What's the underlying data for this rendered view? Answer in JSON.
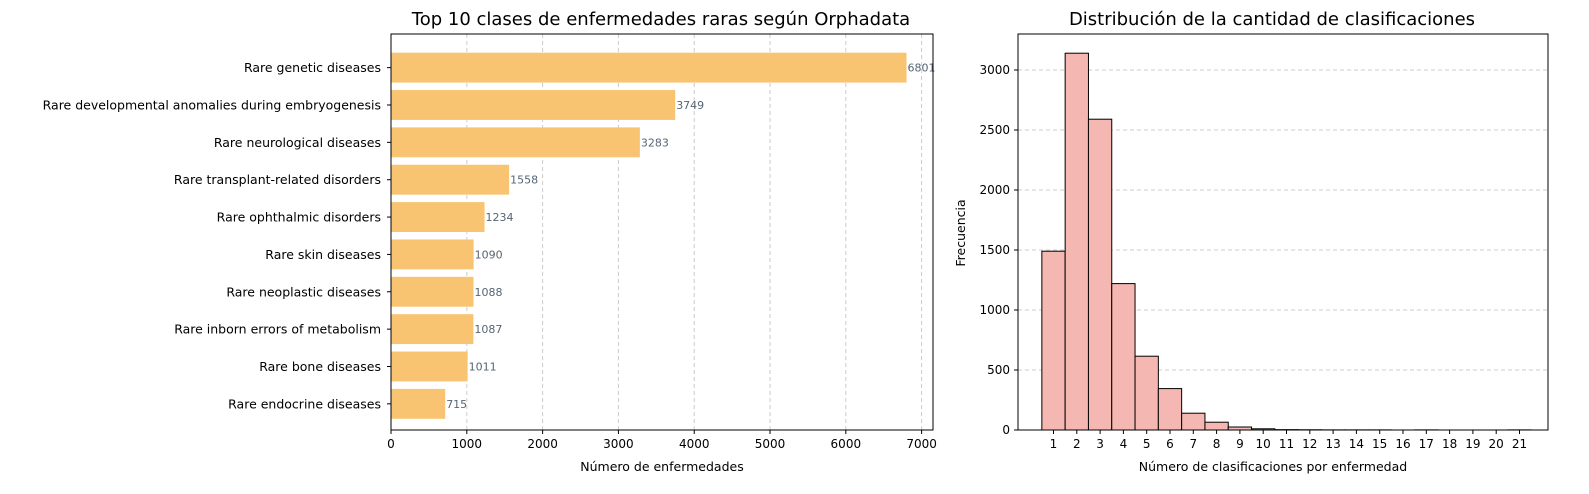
{
  "chart_data": [
    {
      "type": "bar",
      "orientation": "horizontal",
      "title": "Top 10 clases de enfermedades raras según Orphadata",
      "xlabel": "Número de enfermedades",
      "ylabel": "",
      "categories": [
        "Rare genetic diseases",
        "Rare developmental anomalies during embryogenesis",
        "Rare neurological diseases",
        "Rare transplant-related disorders",
        "Rare ophthalmic disorders",
        "Rare skin diseases",
        "Rare neoplastic diseases",
        "Rare inborn errors of metabolism",
        "Rare bone diseases",
        "Rare endocrine diseases"
      ],
      "values": [
        6801,
        3749,
        3283,
        1558,
        1234,
        1090,
        1088,
        1087,
        1011,
        715
      ],
      "xlim": [
        0,
        7150
      ],
      "xticks": [
        0,
        1000,
        2000,
        3000,
        4000,
        5000,
        6000,
        7000
      ],
      "grid": "x-dashed",
      "bar_color": "#F8C471",
      "label_color": "#566573"
    },
    {
      "type": "bar",
      "title": "Distribución de la cantidad de clasificaciones",
      "xlabel": "Número de clasificaciones por enfermedad",
      "ylabel": "Frecuencia",
      "categories": [
        "1",
        "2",
        "3",
        "4",
        "5",
        "6",
        "7",
        "8",
        "9",
        "10",
        "11",
        "12",
        "13",
        "14",
        "15",
        "16",
        "17",
        "18",
        "19",
        "20",
        "21"
      ],
      "values": [
        1490,
        3140,
        2590,
        1220,
        615,
        345,
        140,
        65,
        25,
        10,
        3,
        2,
        1,
        1,
        1,
        0,
        1,
        0,
        0,
        0,
        1
      ],
      "ylim": [
        0,
        3300
      ],
      "yticks": [
        0,
        500,
        1000,
        1500,
        2000,
        2500,
        3000
      ],
      "grid": "y-dashed",
      "bar_color": "#F5B7B1",
      "edge_color": "#000000"
    }
  ]
}
